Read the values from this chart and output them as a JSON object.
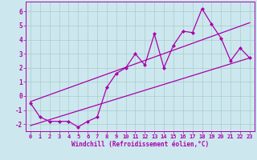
{
  "xlabel": "Windchill (Refroidissement éolien,°C)",
  "background_color": "#cce8ee",
  "line_color": "#aa00aa",
  "grid_color": "#aacccc",
  "xlim": [
    -0.5,
    23.5
  ],
  "ylim": [
    -2.5,
    6.7
  ],
  "xticks": [
    0,
    1,
    2,
    3,
    4,
    5,
    6,
    7,
    8,
    9,
    10,
    11,
    12,
    13,
    14,
    15,
    16,
    17,
    18,
    19,
    20,
    21,
    22,
    23
  ],
  "yticks": [
    -2,
    -1,
    0,
    1,
    2,
    3,
    4,
    5,
    6
  ],
  "scatter_x": [
    0,
    1,
    2,
    3,
    4,
    5,
    6,
    7,
    8,
    9,
    10,
    11,
    12,
    13,
    14,
    15,
    16,
    17,
    18,
    19,
    20,
    21,
    22,
    23
  ],
  "scatter_y": [
    -0.5,
    -1.5,
    -1.8,
    -1.8,
    -1.8,
    -2.2,
    -1.8,
    -1.5,
    0.6,
    1.6,
    2.0,
    3.0,
    2.2,
    4.4,
    2.0,
    3.6,
    4.6,
    4.5,
    6.2,
    5.1,
    4.1,
    2.5,
    3.4,
    2.7
  ],
  "line1_x": [
    0,
    23
  ],
  "line1_y": [
    -2.1,
    2.7
  ],
  "line2_x": [
    0,
    23
  ],
  "line2_y": [
    -0.4,
    5.2
  ],
  "marker": "D",
  "markersize": 2.5,
  "linewidth": 0.9
}
